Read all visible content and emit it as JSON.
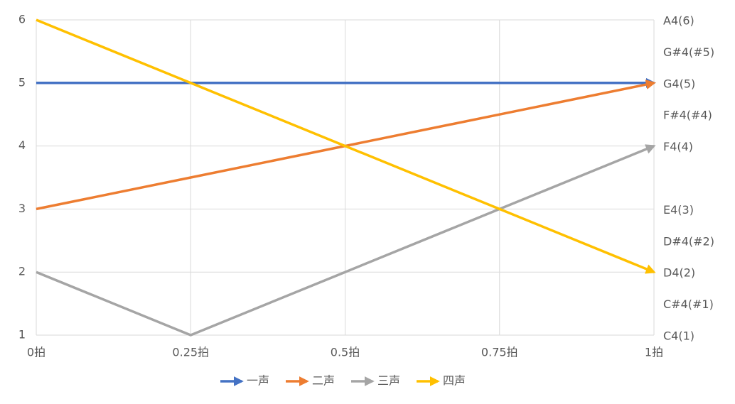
{
  "chart_data": {
    "type": "line",
    "x": [
      0,
      0.25,
      0.5,
      0.75,
      1
    ],
    "xlim": [
      0,
      1
    ],
    "xticks": [
      {
        "value": 0,
        "label": "0拍"
      },
      {
        "value": 0.25,
        "label": "0.25拍"
      },
      {
        "value": 0.5,
        "label": "0.5拍"
      },
      {
        "value": 0.75,
        "label": "0.75拍"
      },
      {
        "value": 1,
        "label": "1拍"
      }
    ],
    "ylim": [
      1,
      6
    ],
    "yticks": [
      1,
      2,
      3,
      4,
      5,
      6
    ],
    "y2lim": [
      1,
      6
    ],
    "y2ticks": [
      {
        "value": 6,
        "label": "A4(6)"
      },
      {
        "value": 5.5,
        "label": "G#4(#5)"
      },
      {
        "value": 5,
        "label": "G4(5)"
      },
      {
        "value": 4.5,
        "label": "F#4(#4)"
      },
      {
        "value": 4,
        "label": "F4(4)"
      },
      {
        "value": 3,
        "label": "E4(3)"
      },
      {
        "value": 2.5,
        "label": "D#4(#2)"
      },
      {
        "value": 2,
        "label": "D4(2)"
      },
      {
        "value": 1.5,
        "label": "C#4(#1)"
      },
      {
        "value": 1,
        "label": "C4(1)"
      }
    ],
    "grid": true,
    "legend": "bottom",
    "series": [
      {
        "name": "一声",
        "color": "#4472c4",
        "values": [
          5,
          5,
          5,
          5,
          5
        ]
      },
      {
        "name": "二声",
        "color": "#ed7d31",
        "values": [
          3,
          3.5,
          4,
          4.5,
          5
        ]
      },
      {
        "name": "三声",
        "color": "#a5a5a5",
        "values": [
          2,
          1,
          2,
          3,
          4
        ]
      },
      {
        "name": "四声",
        "color": "#ffc000",
        "values": [
          6,
          5,
          4,
          3,
          2
        ]
      }
    ]
  }
}
